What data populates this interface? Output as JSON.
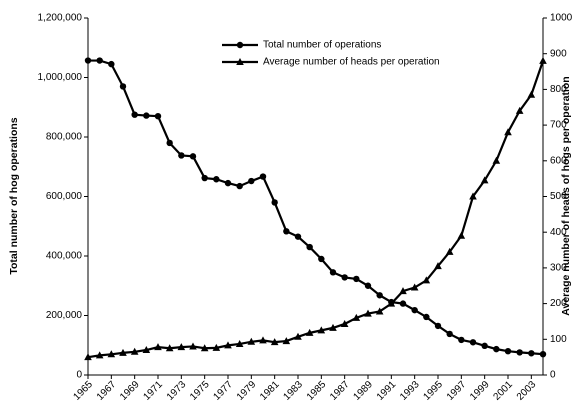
{
  "chart_data": {
    "type": "line",
    "x": [
      1965,
      1966,
      1967,
      1968,
      1969,
      1970,
      1971,
      1972,
      1973,
      1974,
      1975,
      1976,
      1977,
      1978,
      1979,
      1980,
      1981,
      1982,
      1983,
      1984,
      1985,
      1986,
      1987,
      1988,
      1989,
      1990,
      1991,
      1992,
      1993,
      1994,
      1995,
      1996,
      1997,
      1998,
      1999,
      2000,
      2001,
      2002,
      2003,
      2004
    ],
    "xlim": [
      1965,
      2004
    ],
    "xticks": [
      1965,
      1967,
      1969,
      1971,
      1973,
      1975,
      1977,
      1979,
      1981,
      1983,
      1985,
      1987,
      1989,
      1991,
      1993,
      1995,
      1997,
      1999,
      2001,
      2003
    ],
    "y_label": "Total number of hog operations",
    "y2_label": "Average number of heads of hogs per operation",
    "ylim": [
      0,
      1200000
    ],
    "yticks": [
      0,
      {
        "value": 200000,
        "label": "200,000"
      },
      {
        "value": 400000,
        "label": "400,000"
      },
      {
        "value": 600000,
        "label": "600,000"
      },
      {
        "value": 800000,
        "label": "800,000"
      },
      {
        "value": 1000000,
        "label": "1,000,000"
      },
      {
        "value": 1200000,
        "label": "1,200,000"
      }
    ],
    "y2lim": [
      0,
      1000
    ],
    "y2ticks": [
      0,
      100,
      200,
      300,
      400,
      500,
      600,
      700,
      800,
      900,
      1000
    ],
    "series": [
      {
        "name": "Total number of operations",
        "color": "#000000",
        "marker": "circle",
        "values": [
          1057000,
          1057000,
          1045000,
          970000,
          875000,
          872000,
          870000,
          780000,
          738000,
          735000,
          662000,
          658000,
          645000,
          635000,
          652000,
          667000,
          580000,
          483000,
          465000,
          430000,
          390000,
          345000,
          328000,
          323000,
          300000,
          268000,
          245000,
          240000,
          218000,
          195000,
          165000,
          138000,
          118000,
          110000,
          98000,
          87000,
          80000,
          76000,
          73000,
          70000
        ]
      },
      {
        "name": "Average number of  heads per operation",
        "color": "#000000",
        "marker": "triangle",
        "axis": "y2",
        "values": [
          50,
          55,
          58,
          62,
          65,
          70,
          78,
          75,
          78,
          80,
          75,
          76,
          83,
          87,
          93,
          97,
          92,
          95,
          107,
          118,
          125,
          132,
          143,
          160,
          172,
          178,
          200,
          235,
          245,
          265,
          305,
          345,
          390,
          500,
          545,
          600,
          680,
          740,
          785,
          880
        ]
      }
    ]
  }
}
